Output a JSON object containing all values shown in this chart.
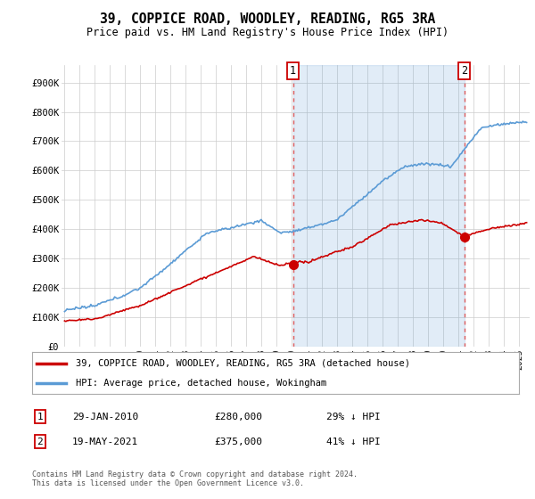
{
  "title": "39, COPPICE ROAD, WOODLEY, READING, RG5 3RA",
  "subtitle": "Price paid vs. HM Land Registry's House Price Index (HPI)",
  "yticks": [
    0,
    100000,
    200000,
    300000,
    400000,
    500000,
    600000,
    700000,
    800000,
    900000
  ],
  "ytick_labels": [
    "£0",
    "£100K",
    "£200K",
    "£300K",
    "£400K",
    "£500K",
    "£600K",
    "£700K",
    "£800K",
    "£900K"
  ],
  "ylim": [
    0,
    960000
  ],
  "xlim_start": 1994.8,
  "xlim_end": 2025.7,
  "hpi_color": "#5b9bd5",
  "hpi_fill_color": "#ddeeff",
  "price_color": "#cc0000",
  "vline_color": "#dd4444",
  "marker1_x": 2010.08,
  "marker1_y": 280000,
  "marker2_x": 2021.38,
  "marker2_y": 375000,
  "legend_line1": "39, COPPICE ROAD, WOODLEY, READING, RG5 3RA (detached house)",
  "legend_line2": "HPI: Average price, detached house, Wokingham",
  "table_row1": [
    "1",
    "29-JAN-2010",
    "£280,000",
    "29% ↓ HPI"
  ],
  "table_row2": [
    "2",
    "19-MAY-2021",
    "£375,000",
    "41% ↓ HPI"
  ],
  "footnote": "Contains HM Land Registry data © Crown copyright and database right 2024.\nThis data is licensed under the Open Government Licence v3.0.",
  "background_color": "#ffffff",
  "grid_color": "#cccccc"
}
